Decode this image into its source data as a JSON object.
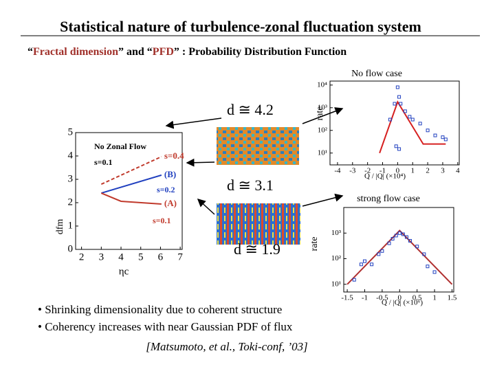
{
  "header": {
    "title": "Statistical nature of turbulence-zonal fluctuation system",
    "subtitle": [
      "“",
      "Fractal dimension",
      "” and “",
      "PFD",
      "” : Probability Distribution Function"
    ]
  },
  "dimension_labels": [
    "d ≅ 4.2",
    "d ≅ 3.1",
    "d ≅ 1.9"
  ],
  "fractal_plot": {
    "type": "line",
    "xlabel": "ηc",
    "ylabel": "dfm",
    "xlim": [
      1.7,
      7.1
    ],
    "ylim": [
      0,
      5
    ],
    "xticks": [
      2,
      3,
      4,
      5,
      6,
      7
    ],
    "yticks": [
      0,
      1,
      2,
      3,
      4,
      5
    ],
    "series": [
      {
        "name": "s=0.4",
        "color": "#c0392b",
        "dash": true,
        "mode": "line",
        "x": [
          3,
          6.05
        ],
        "values": [
          2.79,
          3.97
        ]
      },
      {
        "name": "(B)",
        "color": "#1f3fbf",
        "dash": false,
        "mode": "line",
        "x": [
          3,
          6.05
        ],
        "values": [
          2.41,
          3.18
        ]
      },
      {
        "name": "(A)",
        "color": "#c0392b",
        "dash": false,
        "mode": "line",
        "x": [
          3,
          4,
          6.05
        ],
        "values": [
          2.41,
          2.06,
          1.94
        ]
      }
    ],
    "annotations": [
      "No Zonal Flow",
      "s=0.1",
      "s=0.2",
      "s=0.1"
    ]
  },
  "no_flow_plot": {
    "type": "scatter",
    "title": "No flow case",
    "ylabel": "rate",
    "xlabel": "Q / |Q| (×10⁴)",
    "log_y": true,
    "xlim": [
      -4.5,
      4.1
    ],
    "ylim": [
      3,
      15000
    ],
    "xticks": [
      -4,
      -3,
      -2,
      -1,
      0,
      1,
      2,
      3,
      4
    ],
    "yticks": [
      {
        "value": 10,
        "label": "10¹"
      },
      {
        "value": 100,
        "label": "10²"
      },
      {
        "value": 1000,
        "label": "10³"
      },
      {
        "value": 10000,
        "label": "10⁴"
      }
    ],
    "series": [
      {
        "color": "#d62020",
        "mode": "line",
        "x": [
          -1.2,
          0,
          1.7,
          3.2
        ],
        "values": [
          10,
          1800,
          25,
          25
        ]
      },
      {
        "color": "#1f3fbf",
        "mode": "markers",
        "x": [
          -0.5,
          -0.2,
          -0.1,
          0,
          0.1,
          0.1,
          0.2,
          0.5,
          0.8,
          1,
          1.5,
          2,
          2.5,
          3,
          3.2
        ],
        "values": [
          300,
          1500,
          20,
          8000,
          3000,
          15,
          1500,
          700,
          400,
          300,
          200,
          100,
          60,
          50,
          40
        ]
      }
    ]
  },
  "strong_flow_plot": {
    "type": "scatter",
    "title": "strong flow case",
    "ylabel": "rate",
    "xlabel": "Q / |Q| (×10⁶)",
    "log_y": true,
    "xlim": [
      -1.6,
      1.55
    ],
    "ylim": [
      5,
      10000
    ],
    "xticks": [
      -1.5,
      -1,
      -0.5,
      0,
      0.5,
      1,
      1.5
    ],
    "yticks": [
      {
        "value": 10,
        "label": "10¹"
      },
      {
        "value": 100,
        "label": "10²"
      },
      {
        "value": 1000,
        "label": "10³"
      }
    ],
    "series": [
      {
        "color": "#b03030",
        "mode": "line",
        "x": [
          -1.5,
          0,
          1.5
        ],
        "values": [
          10,
          1260,
          10
        ]
      },
      {
        "color": "#1f3fbf",
        "mode": "markers",
        "x": [
          -1.3,
          -1.1,
          -1,
          -0.8,
          -0.6,
          -0.5,
          -0.3,
          -0.2,
          -0.1,
          0,
          0.1,
          0.2,
          0.3,
          0.5,
          0.7,
          0.8,
          1
        ],
        "values": [
          15,
          60,
          80,
          60,
          150,
          200,
          400,
          600,
          800,
          1000,
          900,
          700,
          500,
          300,
          150,
          50,
          30
        ]
      }
    ]
  },
  "bullets": [
    "• Shrinking dimensionality due to coherent structure",
    "• Coherency increases with near Gaussian PDF of flux"
  ],
  "citation": "[Matsumoto, et al., Toki-conf, ’03]"
}
